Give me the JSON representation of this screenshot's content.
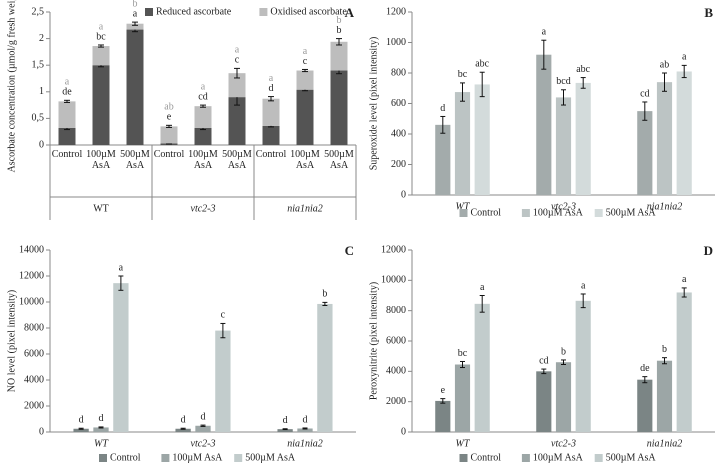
{
  "chart_data": [
    {
      "type": "stacked_bar",
      "panel_label": "A",
      "y_label": "Ascorbate concentration (µmol/g fresh weight)",
      "categories": [
        "Control",
        "100µM AsA",
        "500µM AsA",
        "Control",
        "100µM AsA",
        "500µM AsA",
        "Control",
        "100µM AsA",
        "500µM AsA"
      ],
      "groups": [
        "WT",
        "vtc2-3",
        "nia1nia2"
      ],
      "series": [
        {
          "name": "Reduced ascorbate",
          "color": "#545454",
          "values": [
            0.32,
            1.5,
            2.17,
            0.03,
            0.32,
            0.9,
            0.36,
            1.04,
            1.4
          ],
          "errors": [
            0.03,
            0.03,
            0.04,
            0.01,
            0.03,
            0.15,
            0.02,
            0.02,
            0.06
          ],
          "letters": [
            "de",
            "bc",
            "a",
            "e",
            "cd",
            "c",
            "d",
            "c",
            "b"
          ],
          "letter_color": "#222"
        },
        {
          "name": "Oxidised ascorbate",
          "color": "#bdbdbd",
          "values": [
            0.5,
            0.36,
            0.11,
            0.32,
            0.41,
            0.45,
            0.51,
            0.36,
            0.54
          ],
          "errors": [
            0.02,
            0.02,
            0.03,
            0.02,
            0.02,
            0.09,
            0.04,
            0.02,
            0.06
          ],
          "letters": [
            "a",
            "a",
            "b",
            "ab",
            "a",
            "a",
            "a",
            "a",
            "b"
          ],
          "letter_color": "#9a9a9a"
        }
      ],
      "ylim": [
        0,
        2.5
      ],
      "yticks": [
        0,
        {
          "value": 0.5,
          "label": "0,5"
        },
        1,
        {
          "value": 1.5,
          "label": "1,5"
        },
        2,
        {
          "value": 2.5,
          "label": "2,5"
        }
      ],
      "legend": "top"
    },
    {
      "type": "bar",
      "panel_label": "B",
      "y_label": "Superoxide level (pixel intensity)",
      "categories": [
        "WT",
        "vtc2-3",
        "nia1nia2"
      ],
      "series": [
        {
          "name": "Control",
          "color": "#a3abab",
          "values": [
            460,
            920,
            550
          ],
          "errors": [
            55,
            95,
            60
          ],
          "letters": [
            "d",
            "a",
            "cd"
          ]
        },
        {
          "name": "100µM AsA",
          "color": "#bcc4c4",
          "values": [
            675,
            640,
            740
          ],
          "errors": [
            60,
            50,
            60
          ],
          "letters": [
            "bc",
            "bcd",
            "ab"
          ]
        },
        {
          "name": "500µM AsA",
          "color": "#d3dbdb",
          "values": [
            725,
            735,
            810
          ],
          "errors": [
            80,
            35,
            40
          ],
          "letters": [
            "abc",
            "abc",
            "a"
          ]
        }
      ],
      "ylim": [
        0,
        1200
      ],
      "yticks": [
        0,
        200,
        400,
        600,
        800,
        1000,
        1200
      ],
      "legend": "bottom"
    },
    {
      "type": "bar",
      "panel_label": "C",
      "y_label": "NO level (pixel intensity)",
      "categories": [
        "WT",
        "vtc2-3",
        "nia1nia2"
      ],
      "series": [
        {
          "name": "Control",
          "color": "#7b8585",
          "values": [
            250,
            250,
            220
          ],
          "errors": [
            40,
            40,
            30
          ],
          "letters": [
            "d",
            "d",
            "d"
          ]
        },
        {
          "name": "100µM AsA",
          "color": "#9ca6a6",
          "values": [
            350,
            480,
            270
          ],
          "errors": [
            40,
            50,
            40
          ],
          "letters": [
            "d",
            "d",
            "d"
          ]
        },
        {
          "name": "500µM AsA",
          "color": "#c2cccc",
          "values": [
            11450,
            7800,
            9850
          ],
          "errors": [
            550,
            550,
            120
          ],
          "letters": [
            "a",
            "c",
            "b"
          ]
        }
      ],
      "ylim": [
        0,
        14000
      ],
      "yticks": [
        0,
        2000,
        4000,
        6000,
        8000,
        10000,
        12000,
        14000
      ],
      "legend": "bottom"
    },
    {
      "type": "bar",
      "panel_label": "D",
      "y_label": "Peroxynitrite (pixel intensity)",
      "categories": [
        "WT",
        "vtc2-3",
        "nia1nia2"
      ],
      "series": [
        {
          "name": "Control",
          "color": "#7b8585",
          "values": [
            2050,
            4000,
            3450
          ],
          "errors": [
            150,
            150,
            200
          ],
          "letters": [
            "e",
            "cd",
            "de"
          ]
        },
        {
          "name": "100µM AsA",
          "color": "#9ca6a6",
          "values": [
            4450,
            4600,
            4700
          ],
          "errors": [
            200,
            150,
            200
          ],
          "letters": [
            "bc",
            "b",
            "b"
          ]
        },
        {
          "name": "500µM AsA",
          "color": "#c2cccc",
          "values": [
            8450,
            8650,
            9200
          ],
          "errors": [
            550,
            450,
            300
          ],
          "letters": [
            "a",
            "a",
            "a"
          ]
        }
      ],
      "ylim": [
        0,
        12000
      ],
      "yticks": [
        0,
        2000,
        4000,
        6000,
        8000,
        10000,
        12000
      ],
      "legend": "bottom"
    }
  ]
}
